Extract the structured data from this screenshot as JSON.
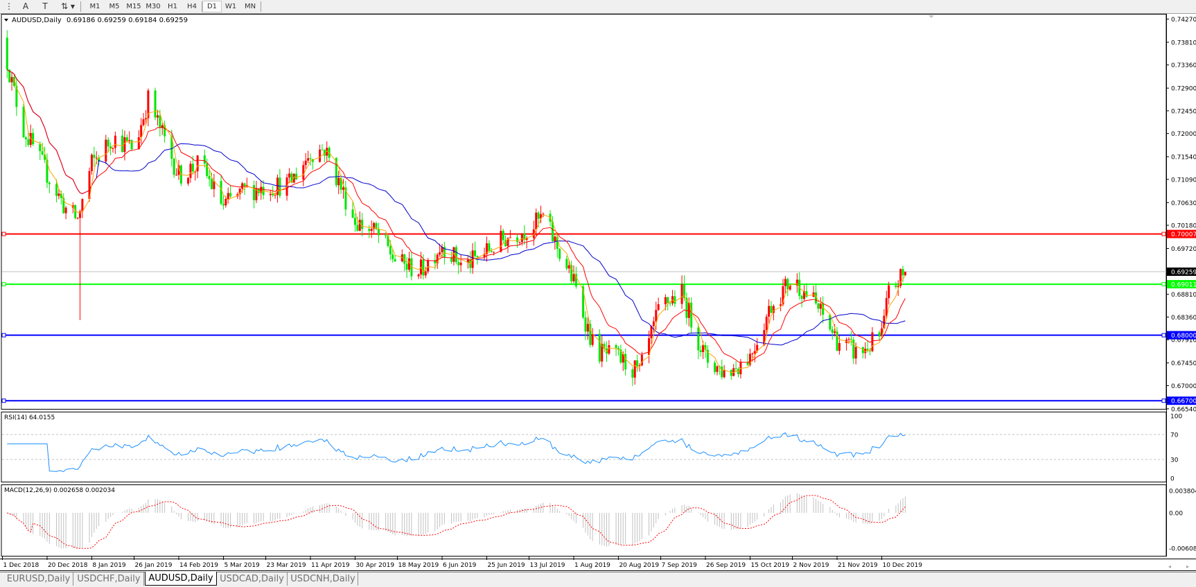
{
  "toolbar": {
    "tools": [
      {
        "name": "period-separator-icon",
        "glyph": "⋮"
      },
      {
        "name": "text-tool",
        "glyph": "A"
      },
      {
        "name": "text-label-tool",
        "glyph": "T"
      },
      {
        "name": "arrows-tool",
        "glyph": "⇅"
      }
    ],
    "timeframes": [
      "M1",
      "M5",
      "M15",
      "M30",
      "H1",
      "H4",
      "D1",
      "W1",
      "MN"
    ],
    "active_timeframe": "D1"
  },
  "chart_header": {
    "symbol": "AUDUSD,Daily",
    "ohlc": "0.69186 0.69259 0.69184 0.69259"
  },
  "tabs": [
    "EURUSD,Daily",
    "USDCHF,Daily",
    "AUDUSD,Daily",
    "USDCAD,Daily",
    "USDCNH,Daily"
  ],
  "active_tab": "AUDUSD,Daily",
  "colors": {
    "bull_candle": "#ff0000",
    "bear_candle": "#00e600",
    "ma_fast": "#ffa500",
    "ma_mid": "#ff0000",
    "ma_slow": "#0000cc",
    "rsi_line": "#1e90ff",
    "macd_hist": "#c0c0c0",
    "macd_signal": "#ff0000"
  },
  "chart_data": {
    "type": "candlestick",
    "symbol": "AUDUSD",
    "timeframe": "Daily",
    "last_bar": {
      "open": 0.69186,
      "high": 0.69259,
      "low": 0.69184,
      "close": 0.69259
    },
    "close_path": [
      [
        "2018-12-03",
        0.7345
      ],
      [
        "2018-12-05",
        0.73
      ],
      [
        "2018-12-10",
        0.7208
      ],
      [
        "2018-12-20",
        0.712
      ],
      [
        "2018-12-28",
        0.705
      ],
      [
        "2019-01-02",
        0.703
      ],
      [
        "2019-01-08",
        0.714
      ],
      [
        "2019-01-17",
        0.7192
      ],
      [
        "2019-01-26",
        0.717
      ],
      [
        "2019-02-01",
        0.7268
      ],
      [
        "2019-02-14",
        0.7117
      ],
      [
        "2019-02-23",
        0.714
      ],
      [
        "2019-03-05",
        0.7056
      ],
      [
        "2019-03-14",
        0.7087
      ],
      [
        "2019-03-23",
        0.7094
      ],
      [
        "2019-04-02",
        0.71
      ],
      [
        "2019-04-11",
        0.7162
      ],
      [
        "2019-04-17",
        0.717
      ],
      [
        "2019-04-30",
        0.7026
      ],
      [
        "2019-05-09",
        0.7003
      ],
      [
        "2019-05-18",
        0.6943
      ],
      [
        "2019-05-28",
        0.6928
      ],
      [
        "2019-06-06",
        0.6981
      ],
      [
        "2019-06-15",
        0.6935
      ],
      [
        "2019-06-25",
        0.6966
      ],
      [
        "2019-07-04",
        0.6996
      ],
      [
        "2019-07-13",
        0.7011
      ],
      [
        "2019-07-19",
        0.7034
      ],
      [
        "2019-08-01",
        0.6905
      ],
      [
        "2019-08-10",
        0.6769
      ],
      [
        "2019-08-20",
        0.6754
      ],
      [
        "2019-08-29",
        0.6724
      ],
      [
        "2019-09-07",
        0.686
      ],
      [
        "2019-09-16",
        0.6882
      ],
      [
        "2019-09-26",
        0.6754
      ],
      [
        "2019-10-05",
        0.6724
      ],
      [
        "2019-10-15",
        0.676
      ],
      [
        "2019-10-24",
        0.686
      ],
      [
        "2019-11-02",
        0.6912
      ],
      [
        "2019-11-11",
        0.6867
      ],
      [
        "2019-11-21",
        0.6791
      ],
      [
        "2019-11-30",
        0.6761
      ],
      [
        "2019-12-10",
        0.68
      ],
      [
        "2019-12-13",
        0.6883
      ],
      [
        "2019-12-20",
        0.69259
      ]
    ],
    "flash_low": [
      "2019-01-03",
      0.683
    ],
    "moving_averages": [
      "fast",
      "mid",
      "slow"
    ],
    "horizontal_lines": [
      {
        "price": "0.70007",
        "color": "#ff0000"
      },
      {
        "price": "0.69011",
        "color": "#00ff00"
      },
      {
        "price": "0.68000",
        "color": "#0000ff"
      },
      {
        "price": "0.66700",
        "color": "#0000ff"
      }
    ],
    "current_price": "0.69259",
    "y_range": [
      0.6654,
      0.7427
    ],
    "y_ticks": [
      "0.74270",
      "0.73810",
      "0.73360",
      "0.72900",
      "0.72450",
      "0.72000",
      "0.71540",
      "0.71090",
      "0.70630",
      "0.70180",
      "0.69720",
      "0.68810",
      "0.68360",
      "0.67910",
      "0.67450",
      "0.67000",
      "0.66540"
    ],
    "x_labels": [
      [
        "2018-12-01",
        "1 Dec 2018"
      ],
      [
        "2018-12-20",
        "20 Dec 2018"
      ],
      [
        "2019-01-08",
        "8 Jan 2019"
      ],
      [
        "2019-01-26",
        "26 Jan 2019"
      ],
      [
        "2019-02-14",
        "14 Feb 2019"
      ],
      [
        "2019-03-05",
        "5 Mar 2019"
      ],
      [
        "2019-03-23",
        "23 Mar 2019"
      ],
      [
        "2019-04-11",
        "11 Apr 2019"
      ],
      [
        "2019-04-30",
        "30 Apr 2019"
      ],
      [
        "2019-05-18",
        "18 May 2019"
      ],
      [
        "2019-06-06",
        "6 Jun 2019"
      ],
      [
        "2019-06-25",
        "25 Jun 2019"
      ],
      [
        "2019-07-13",
        "13 Jul 2019"
      ],
      [
        "2019-08-01",
        "1 Aug 2019"
      ],
      [
        "2019-08-20",
        "20 Aug 2019"
      ],
      [
        "2019-09-07",
        "7 Sep 2019"
      ],
      [
        "2019-09-26",
        "26 Sep 2019"
      ],
      [
        "2019-10-15",
        "15 Oct 2019"
      ],
      [
        "2019-11-02",
        "2 Nov 2019"
      ],
      [
        "2019-11-21",
        "21 Nov 2019"
      ],
      [
        "2019-12-10",
        "10 Dec 2019"
      ]
    ],
    "rsi": {
      "label": "RSI(14) 64.0155",
      "period": 14,
      "levels": [
        "70",
        "30"
      ],
      "ticks": [
        "100",
        "70",
        "30",
        "0"
      ]
    },
    "macd": {
      "label": "MACD(12,26,9) 0.002658 0.002034",
      "fast": 12,
      "slow": 26,
      "signal": 9,
      "ticks": [
        "0.003804",
        "0.00",
        "-0.006087"
      ],
      "range": [
        -0.006087,
        0.003804
      ]
    }
  }
}
